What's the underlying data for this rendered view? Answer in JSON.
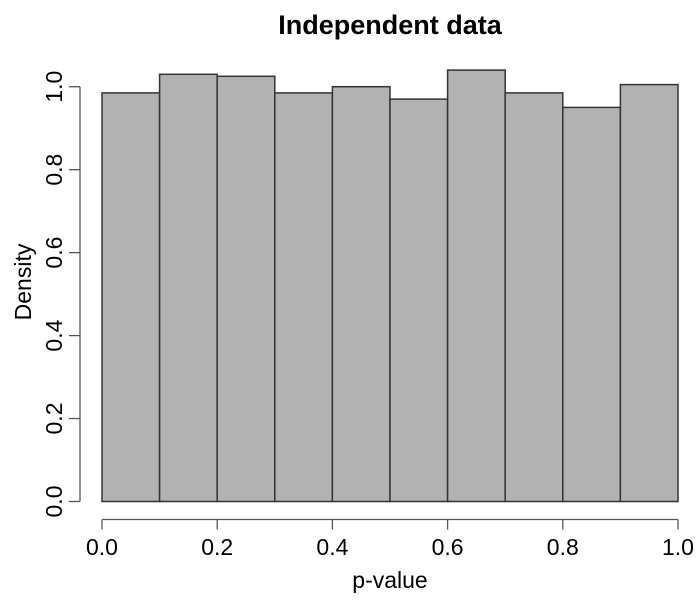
{
  "chart_data": {
    "type": "bar",
    "subtype": "histogram",
    "title": "Independent data",
    "xlabel": "p-value",
    "ylabel": "Density",
    "bin_edges": [
      0.0,
      0.1,
      0.2,
      0.3,
      0.4,
      0.5,
      0.6,
      0.7,
      0.8,
      0.9,
      1.0
    ],
    "values": [
      0.985,
      1.03,
      1.025,
      0.985,
      1.0,
      0.97,
      1.04,
      0.985,
      0.95,
      1.005
    ],
    "x_tick_labels": [
      "0.0",
      "0.2",
      "0.4",
      "0.6",
      "0.8",
      "1.0"
    ],
    "x_tick_values": [
      0.0,
      0.2,
      0.4,
      0.6,
      0.8,
      1.0
    ],
    "y_tick_labels": [
      "0.0",
      "0.2",
      "0.4",
      "0.6",
      "0.8",
      "1.0"
    ],
    "y_tick_values": [
      0.0,
      0.2,
      0.4,
      0.6,
      0.8,
      1.0
    ],
    "xlim": [
      0.0,
      1.0
    ],
    "ylim": [
      0.0,
      1.05
    ],
    "grid": false,
    "legend": false,
    "colors": {
      "bar_fill": "#b2b2b2",
      "bar_border": "#333333",
      "axis": "#555555",
      "text": "#000000",
      "background": "#ffffff"
    }
  }
}
